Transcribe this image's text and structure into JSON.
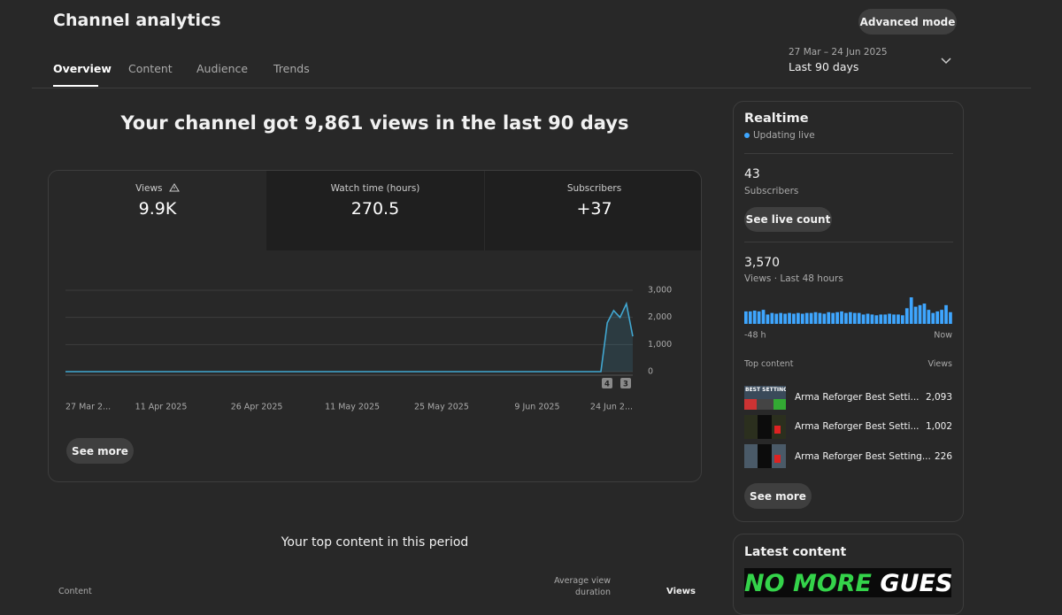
{
  "header": {
    "title": "Channel analytics",
    "advanced_mode": "Advanced mode",
    "tabs": [
      "Overview",
      "Content",
      "Audience",
      "Trends"
    ],
    "date_range": "27 Mar – 24 Jun 2025",
    "period": "Last 90 days"
  },
  "summary": "Your channel got 9,861 views in the last 90 days",
  "metrics": [
    {
      "label": "Views",
      "value": "9.9K"
    },
    {
      "label": "Watch time (hours)",
      "value": "270.5"
    },
    {
      "label": "Subscribers",
      "value": "+37"
    }
  ],
  "chart_data": {
    "type": "line",
    "color": "#41a7d1",
    "categories": [
      "27 Mar 2...",
      null,
      null,
      null,
      null,
      null,
      null,
      null,
      null,
      null,
      null,
      null,
      null,
      null,
      null,
      "11 Apr 2025",
      null,
      null,
      null,
      null,
      null,
      null,
      null,
      null,
      null,
      null,
      null,
      null,
      null,
      null,
      "26 Apr 2025",
      null,
      null,
      null,
      null,
      null,
      null,
      null,
      null,
      null,
      null,
      null,
      null,
      null,
      null,
      "11 May 2025",
      null,
      null,
      null,
      null,
      null,
      null,
      null,
      null,
      null,
      null,
      null,
      null,
      null,
      "25 May 2025",
      null,
      null,
      null,
      null,
      null,
      null,
      null,
      null,
      null,
      null,
      null,
      null,
      null,
      null,
      "9 Jun 2025",
      null,
      null,
      null,
      null,
      null,
      null,
      null,
      null,
      null,
      null,
      null,
      null,
      null,
      null,
      "24 Jun 2..."
    ],
    "values": [
      0,
      0,
      0,
      0,
      0,
      0,
      0,
      0,
      0,
      0,
      0,
      0,
      0,
      0,
      0,
      0,
      0,
      0,
      0,
      0,
      0,
      0,
      0,
      0,
      0,
      0,
      0,
      0,
      0,
      0,
      0,
      0,
      0,
      0,
      0,
      0,
      0,
      0,
      0,
      0,
      0,
      0,
      0,
      0,
      0,
      0,
      0,
      0,
      0,
      0,
      0,
      0,
      0,
      0,
      0,
      0,
      0,
      0,
      0,
      0,
      0,
      0,
      0,
      0,
      0,
      0,
      0,
      0,
      0,
      0,
      0,
      0,
      0,
      0,
      0,
      0,
      0,
      0,
      0,
      0,
      0,
      0,
      0,
      0,
      0,
      1800,
      2250,
      2000,
      2500,
      1300
    ],
    "ylim": [
      0,
      3000
    ],
    "yticks": [
      0,
      {
        "value": 1000,
        "label": "1,000"
      },
      {
        "value": 2000,
        "label": "2,000"
      },
      {
        "value": 3000,
        "label": "3,000"
      }
    ],
    "grid": true,
    "annotations": [
      "4",
      "3"
    ],
    "see_more": "See more"
  },
  "realtime": {
    "title": "Realtime",
    "status": "Updating live",
    "subscribers_value": "43",
    "subscribers_label": "Subscribers",
    "live_count_button": "See live count",
    "views_value": "3,570",
    "views_label": "Views · Last 48 hours",
    "chart_data": {
      "type": "bar",
      "color": "#3ea6ff",
      "values": [
        80,
        80,
        85,
        80,
        90,
        60,
        70,
        65,
        70,
        65,
        70,
        65,
        70,
        65,
        70,
        70,
        75,
        70,
        65,
        75,
        70,
        75,
        80,
        70,
        75,
        70,
        70,
        60,
        65,
        60,
        55,
        60,
        60,
        65,
        60,
        60,
        55,
        100,
        170,
        110,
        120,
        130,
        90,
        70,
        80,
        90,
        120,
        75
      ],
      "start_label": "-48 h",
      "end_label": "Now"
    },
    "top_content_header": "Top content",
    "views_header": "Views",
    "top_content": [
      {
        "title": "Arma Reforger Best Setti...",
        "views": "2,093",
        "thumbnail_text": "BEST SETTINGS"
      },
      {
        "title": "Arma Reforger Best Setti...",
        "views": "1,002"
      },
      {
        "title": "Arma Reforger Best Setting...",
        "views": "226"
      }
    ],
    "see_more": "See more"
  },
  "latest_content": {
    "title": "Latest content",
    "thumbnail_text": [
      "NO MORE",
      "GUESSING!"
    ]
  },
  "top_content_section": {
    "title": "Your top content in this period",
    "columns": [
      "Content",
      "Average view duration",
      "Views"
    ]
  }
}
